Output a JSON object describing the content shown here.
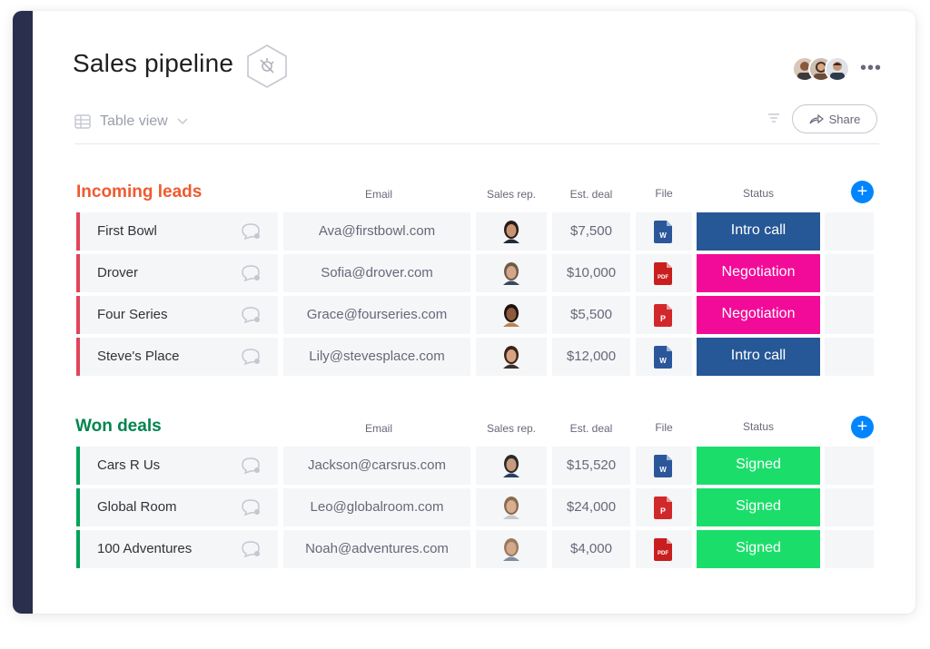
{
  "board": {
    "title": "Sales pipeline",
    "view_label": "Table view",
    "share_label": "Share",
    "more_label": "•••"
  },
  "colors": {
    "incoming": "#e2445c",
    "incoming_title": "#ef5a2f",
    "won": "#00854d",
    "won_bar": "#00a359",
    "intro_call": "#265796",
    "negotiation": "#f20b98",
    "signed": "#1bde6a",
    "add_button": "#0085ff"
  },
  "columns": {
    "email": "Email",
    "sales_rep": "Sales rep.",
    "est_deal": "Est. deal",
    "file": "File",
    "status": "Status"
  },
  "groups": [
    {
      "title": "Incoming leads",
      "rows": [
        {
          "name": "First Bowl",
          "email": "Ava@firstbowl.com",
          "deal": "$7,500",
          "file": "word-icon",
          "status": "Intro call"
        },
        {
          "name": "Drover",
          "email": "Sofia@drover.com",
          "deal": "$10,000",
          "file": "pdf-icon",
          "status": "Negotiation"
        },
        {
          "name": "Four Series",
          "email": "Grace@fourseries.com",
          "deal": "$5,500",
          "file": "powerpoint-icon",
          "status": "Negotiation"
        },
        {
          "name": "Steve's Place",
          "email": "Lily@stevesplace.com",
          "deal": "$12,000",
          "file": "word-icon",
          "status": "Intro call"
        }
      ]
    },
    {
      "title": "Won deals",
      "rows": [
        {
          "name": "Cars R Us",
          "email": "Jackson@carsrus.com",
          "deal": "$15,520",
          "file": "word-icon",
          "status": "Signed"
        },
        {
          "name": "Global Room",
          "email": "Leo@globalroom.com",
          "deal": "$24,000",
          "file": "powerpoint-icon",
          "status": "Signed"
        },
        {
          "name": "100 Adventures",
          "email": "Noah@adventures.com",
          "deal": "$4,000",
          "file": "pdf-icon",
          "status": "Signed"
        }
      ]
    }
  ],
  "file_labels": {
    "word": "W",
    "pdf": "PDF",
    "powerpoint": "P"
  }
}
